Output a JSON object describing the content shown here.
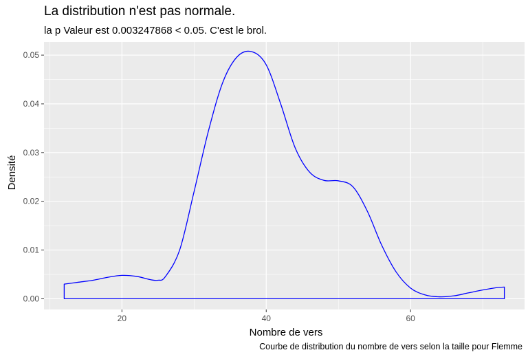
{
  "chart_data": {
    "type": "line",
    "title": "La distribution n'est pas normale.",
    "subtitle": "la p Valeur est  0.003247868  < 0.05. C'est le brol.",
    "caption": "Courbe de distribution du nombre de vers selon la taille pour  Flemme",
    "xlabel": "Nombre de vers",
    "ylabel": "Densité",
    "xlim": [
      9.2,
      75.8
    ],
    "ylim": [
      -0.0022,
      0.0527
    ],
    "x_ticks": [
      20,
      40,
      60
    ],
    "y_ticks": [
      0.0,
      0.01,
      0.02,
      0.03,
      0.04,
      0.05
    ],
    "y_tick_labels": [
      "0.00",
      "0.01",
      "0.02",
      "0.03",
      "0.04",
      "0.05"
    ],
    "x_minor_gridlines": [
      10,
      30,
      50,
      70
    ],
    "y_minor_gridlines": [
      0.005,
      0.015,
      0.025,
      0.035,
      0.045
    ],
    "grid": true,
    "panel_background": "#ebebeb",
    "line_color": "#0000ff",
    "series": [
      {
        "x": [
          12,
          14,
          16,
          18,
          20,
          22,
          24,
          25,
          26,
          28,
          30,
          32,
          34,
          36,
          38,
          40,
          42,
          44,
          46,
          48,
          50,
          52,
          54,
          56,
          58,
          60,
          62,
          64,
          66,
          68,
          70,
          72,
          73
        ],
        "y": [
          0.003,
          0.0034,
          0.0038,
          0.0044,
          0.0048,
          0.0046,
          0.0039,
          0.0038,
          0.0045,
          0.01,
          0.022,
          0.0345,
          0.0445,
          0.0497,
          0.0507,
          0.048,
          0.04,
          0.031,
          0.026,
          0.0243,
          0.0242,
          0.023,
          0.018,
          0.011,
          0.0055,
          0.0022,
          0.0008,
          0.0004,
          0.0006,
          0.0012,
          0.0018,
          0.0023,
          0.0024
        ]
      }
    ]
  }
}
